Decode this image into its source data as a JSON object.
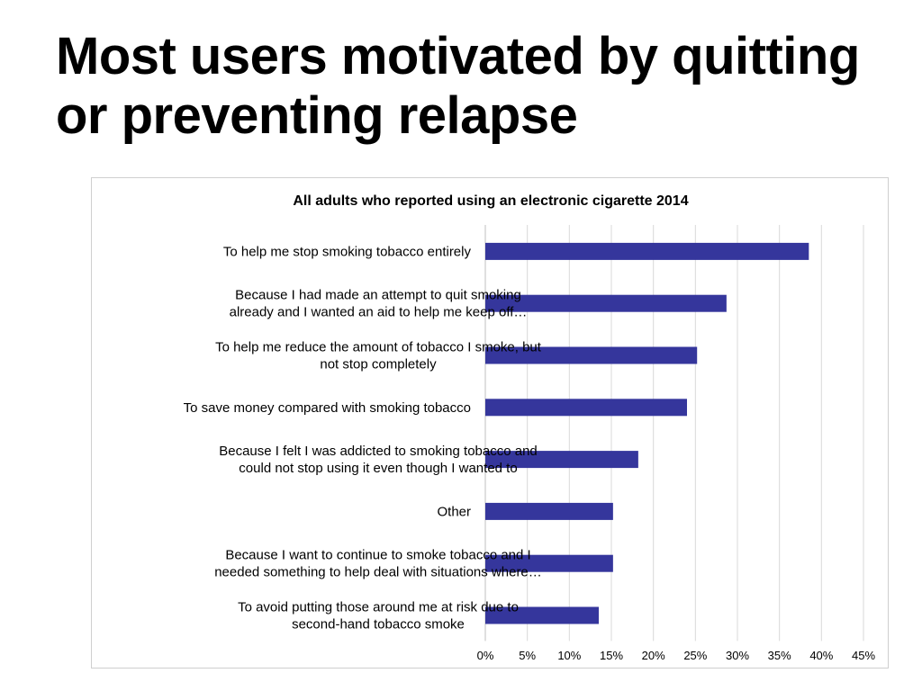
{
  "slide": {
    "title": "Most users motivated by quitting or preventing relapse"
  },
  "colors": {
    "bar": "#35369c",
    "grid": "#d9d9d9",
    "text": "#000000"
  },
  "chart_data": {
    "type": "bar",
    "orientation": "horizontal",
    "title": "All adults who reported using an electronic cigarette 2014",
    "xlabel": "",
    "ylabel": "",
    "xlim": [
      0,
      45
    ],
    "x_ticks": [
      0,
      5,
      10,
      15,
      20,
      25,
      30,
      35,
      40,
      45
    ],
    "x_tick_labels": [
      "0%",
      "5%",
      "10%",
      "15%",
      "20%",
      "25%",
      "30%",
      "35%",
      "40%",
      "45%"
    ],
    "grid": true,
    "legend": "none",
    "categories": [
      [
        "To help me stop smoking tobacco entirely"
      ],
      [
        "Because I had made an attempt to quit smoking",
        "already and I wanted an aid to help me keep off…"
      ],
      [
        "To help me reduce the amount of tobacco I smoke, but",
        "not stop completely"
      ],
      [
        "To save money compared with smoking tobacco"
      ],
      [
        "Because I felt I was addicted to smoking tobacco and",
        "could not stop using it even though I wanted to"
      ],
      [
        "Other"
      ],
      [
        "Because I want to continue to smoke tobacco and I",
        "needed something to help deal with situations where…"
      ],
      [
        "To avoid putting those around me at risk due to",
        "second-hand tobacco smoke"
      ]
    ],
    "values": [
      38.5,
      28.7,
      25.2,
      24.0,
      18.2,
      15.2,
      15.2,
      13.5
    ]
  }
}
